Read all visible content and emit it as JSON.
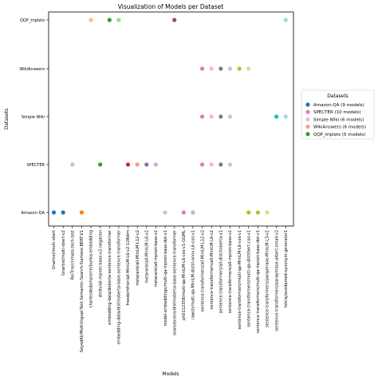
{
  "chart_data": {
    "type": "scatter",
    "title": "Visualization of Models per Dataset",
    "xlabel": "Models",
    "ylabel": "Datasets",
    "grid": false,
    "legend_placement": "right",
    "legend_title": "Datasets",
    "datasets": [
      "Amazon-QA",
      "SPECTER",
      "Simple Wiki",
      "WikiAnswers",
      "QQP_triplets"
    ],
    "models": [
      "Gnartiel/multi-sbert",
      "Gnartiel/multi-sbert-v2",
      "RoiTrns/climate-tech-test",
      "SeyedAli/Multilingual-Text-Semantic-Search-Siamese-BERT-V1",
      "charlesdedampierre/bunka-embedding",
      "dmlls/all-mpnet-base-v2-negation",
      "embedding-data/deberta-sentence-transformer",
      "embedding-data/distilroberta-base-sentence-transformer",
      "freedomfrier/all-MiniLM-L6-v2-128dim",
      "metarank/all-MiniLM-L12-v2",
      "metarank/all-MiniLM-L6-v2",
      "metarank/all-mpnet-base-v2",
      "model-embeddings/multi-qa-mpnet-base-dot-v1",
      "osanseviero/distilroberta-base-sentence-transformer",
      "ph0112358/multi-qa-MiniLM-L6-cos-v1-GGML",
      "rawsh/multi-qa-MiniLM-distill-onnx-L6-cos-v1",
      "sentence-transformers/all-MiniLM-L12-v2",
      "sentence-transformers/all-MiniLM-L6-v2",
      "sentence-transformers/all-distilroberta-v1",
      "sentence-transformers/all-mpnet-base-v2",
      "sentence-transformers/multi-qa-MiniLM-L6-cos-v1",
      "sentence-transformers/multi-qa-distilbert-cos-v1",
      "sentence-transformers/multi-qa-mpnet-base-dot-v1",
      "sentence-transformers/paraphrase-MiniLM-L3-v2",
      "sentence-transformers/paraphrase-albert-small-v2",
      "tekraj/avodamed-synonym-generator1"
    ],
    "legend": [
      "Amazon-QA (9 models)",
      "SPECTER (10 models)",
      "Simple Wiki (6 models)",
      "WikiAnswers (6 models)",
      "QQP_triplets (5 models)"
    ],
    "legend_colors": [
      "#1f77b4",
      "#e377c2",
      "#f7b6d2",
      "#ff9896",
      "#2ca02c"
    ],
    "points": [
      {
        "model": 0,
        "dataset": 0,
        "color": "#1f77b4"
      },
      {
        "model": 1,
        "dataset": 0,
        "color": "#1f77b4"
      },
      {
        "model": 3,
        "dataset": 0,
        "color": "#ff7f0e"
      },
      {
        "model": 12,
        "dataset": 0,
        "color": "#c7c7c7"
      },
      {
        "model": 14,
        "dataset": 0,
        "color": "#e377c2"
      },
      {
        "model": 15,
        "dataset": 0,
        "color": "#c5b0d5"
      },
      {
        "model": 21,
        "dataset": 0,
        "color": "#bcbd22"
      },
      {
        "model": 22,
        "dataset": 0,
        "color": "#bcbd22"
      },
      {
        "model": 23,
        "dataset": 0,
        "color": "#dbdb8d"
      },
      {
        "model": 2,
        "dataset": 1,
        "color": "#aec7e8"
      },
      {
        "model": 5,
        "dataset": 1,
        "color": "#2ca02c"
      },
      {
        "model": 8,
        "dataset": 1,
        "color": "#d62728"
      },
      {
        "model": 9,
        "dataset": 1,
        "color": "#ff9896"
      },
      {
        "model": 10,
        "dataset": 1,
        "color": "#9467bd"
      },
      {
        "model": 11,
        "dataset": 1,
        "color": "#c5b0d5"
      },
      {
        "model": 16,
        "dataset": 1,
        "color": "#e377c2"
      },
      {
        "model": 17,
        "dataset": 1,
        "color": "#f7b6d2"
      },
      {
        "model": 18,
        "dataset": 1,
        "color": "#7f7f7f"
      },
      {
        "model": 19,
        "dataset": 1,
        "color": "#c7c7c7"
      },
      {
        "model": 16,
        "dataset": 2,
        "color": "#e377c2"
      },
      {
        "model": 17,
        "dataset": 2,
        "color": "#f7b6d2"
      },
      {
        "model": 18,
        "dataset": 2,
        "color": "#7f7f7f"
      },
      {
        "model": 19,
        "dataset": 2,
        "color": "#c7c7c7"
      },
      {
        "model": 24,
        "dataset": 2,
        "color": "#17becf"
      },
      {
        "model": 25,
        "dataset": 2,
        "color": "#9edae5"
      },
      {
        "model": 16,
        "dataset": 3,
        "color": "#e377c2"
      },
      {
        "model": 17,
        "dataset": 3,
        "color": "#f7b6d2"
      },
      {
        "model": 18,
        "dataset": 3,
        "color": "#7f7f7f"
      },
      {
        "model": 19,
        "dataset": 3,
        "color": "#c7c7c7"
      },
      {
        "model": 20,
        "dataset": 3,
        "color": "#bcbd22"
      },
      {
        "model": 21,
        "dataset": 3,
        "color": "#dbdb8d"
      },
      {
        "model": 4,
        "dataset": 4,
        "color": "#ffbb78"
      },
      {
        "model": 6,
        "dataset": 4,
        "color": "#2ca02c"
      },
      {
        "model": 7,
        "dataset": 4,
        "color": "#98df8a"
      },
      {
        "model": 13,
        "dataset": 4,
        "color": "#8c564b"
      },
      {
        "model": 25,
        "dataset": 4,
        "color": "#9edae5"
      }
    ]
  }
}
